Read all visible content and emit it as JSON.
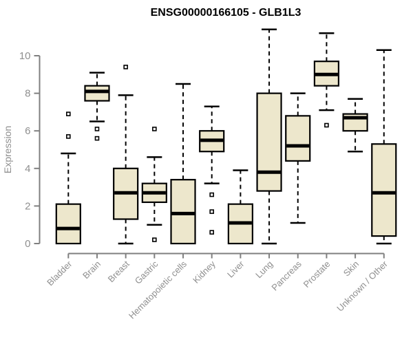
{
  "colors": {
    "box_fill": "#EDE7CC",
    "box_stroke": "#000000",
    "median": "#000000",
    "whisker": "#000000",
    "axis": "#7F7F7F",
    "axis_text": "#8F8F8F",
    "title_text": "#000000",
    "background": "#FFFFFF"
  },
  "chart_data": {
    "type": "box",
    "title": "ENSG00000166105 - GLB1L3",
    "xlabel": "",
    "ylabel": "Expression",
    "ylim": [
      0,
      10
    ],
    "yticks": [
      0,
      2,
      4,
      6,
      8,
      10
    ],
    "grid": false,
    "legend": "none",
    "categories": [
      "Bladder",
      "Brain",
      "Breast",
      "Gastric",
      "Hematopoietic cells",
      "Kidney",
      "Liver",
      "Lung",
      "Pancreas",
      "Prostate",
      "Skin",
      "Unknown / Other"
    ],
    "series": [
      {
        "name": "Bladder",
        "whisker_low": 0.0,
        "q1": 0.0,
        "median": 0.8,
        "q3": 2.1,
        "whisker_high": 4.8,
        "outliers": [
          5.7,
          6.9
        ]
      },
      {
        "name": "Brain",
        "whisker_low": 6.5,
        "q1": 7.6,
        "median": 8.1,
        "q3": 8.4,
        "whisker_high": 9.1,
        "outliers": [
          6.1,
          5.6
        ]
      },
      {
        "name": "Breast",
        "whisker_low": 0.0,
        "q1": 1.3,
        "median": 2.7,
        "q3": 4.0,
        "whisker_high": 7.9,
        "outliers": [
          9.4
        ]
      },
      {
        "name": "Gastric",
        "whisker_low": 1.0,
        "q1": 2.2,
        "median": 2.7,
        "q3": 3.2,
        "whisker_high": 4.6,
        "outliers": [
          6.1,
          0.2
        ]
      },
      {
        "name": "Hematopoietic cells",
        "whisker_low": 0.0,
        "q1": 0.0,
        "median": 1.6,
        "q3": 3.4,
        "whisker_high": 8.5,
        "outliers": []
      },
      {
        "name": "Kidney",
        "whisker_low": 3.2,
        "q1": 4.9,
        "median": 5.5,
        "q3": 6.0,
        "whisker_high": 7.3,
        "outliers": [
          2.6,
          1.7,
          0.6
        ]
      },
      {
        "name": "Liver",
        "whisker_low": 0.0,
        "q1": 0.0,
        "median": 1.1,
        "q3": 2.1,
        "whisker_high": 3.9,
        "outliers": []
      },
      {
        "name": "Lung",
        "whisker_low": 0.0,
        "q1": 2.8,
        "median": 3.8,
        "q3": 8.0,
        "whisker_high": 11.4,
        "outliers": []
      },
      {
        "name": "Pancreas",
        "whisker_low": 1.1,
        "q1": 4.4,
        "median": 5.2,
        "q3": 6.8,
        "whisker_high": 8.0,
        "outliers": []
      },
      {
        "name": "Prostate",
        "whisker_low": 7.1,
        "q1": 8.4,
        "median": 9.0,
        "q3": 9.7,
        "whisker_high": 11.2,
        "outliers": [
          6.3
        ]
      },
      {
        "name": "Skin",
        "whisker_low": 4.9,
        "q1": 6.0,
        "median": 6.7,
        "q3": 6.9,
        "whisker_high": 7.7,
        "outliers": []
      },
      {
        "name": "Unknown / Other",
        "whisker_low": 0.0,
        "q1": 0.4,
        "median": 2.7,
        "q3": 5.3,
        "whisker_high": 10.3,
        "outliers": []
      }
    ]
  }
}
